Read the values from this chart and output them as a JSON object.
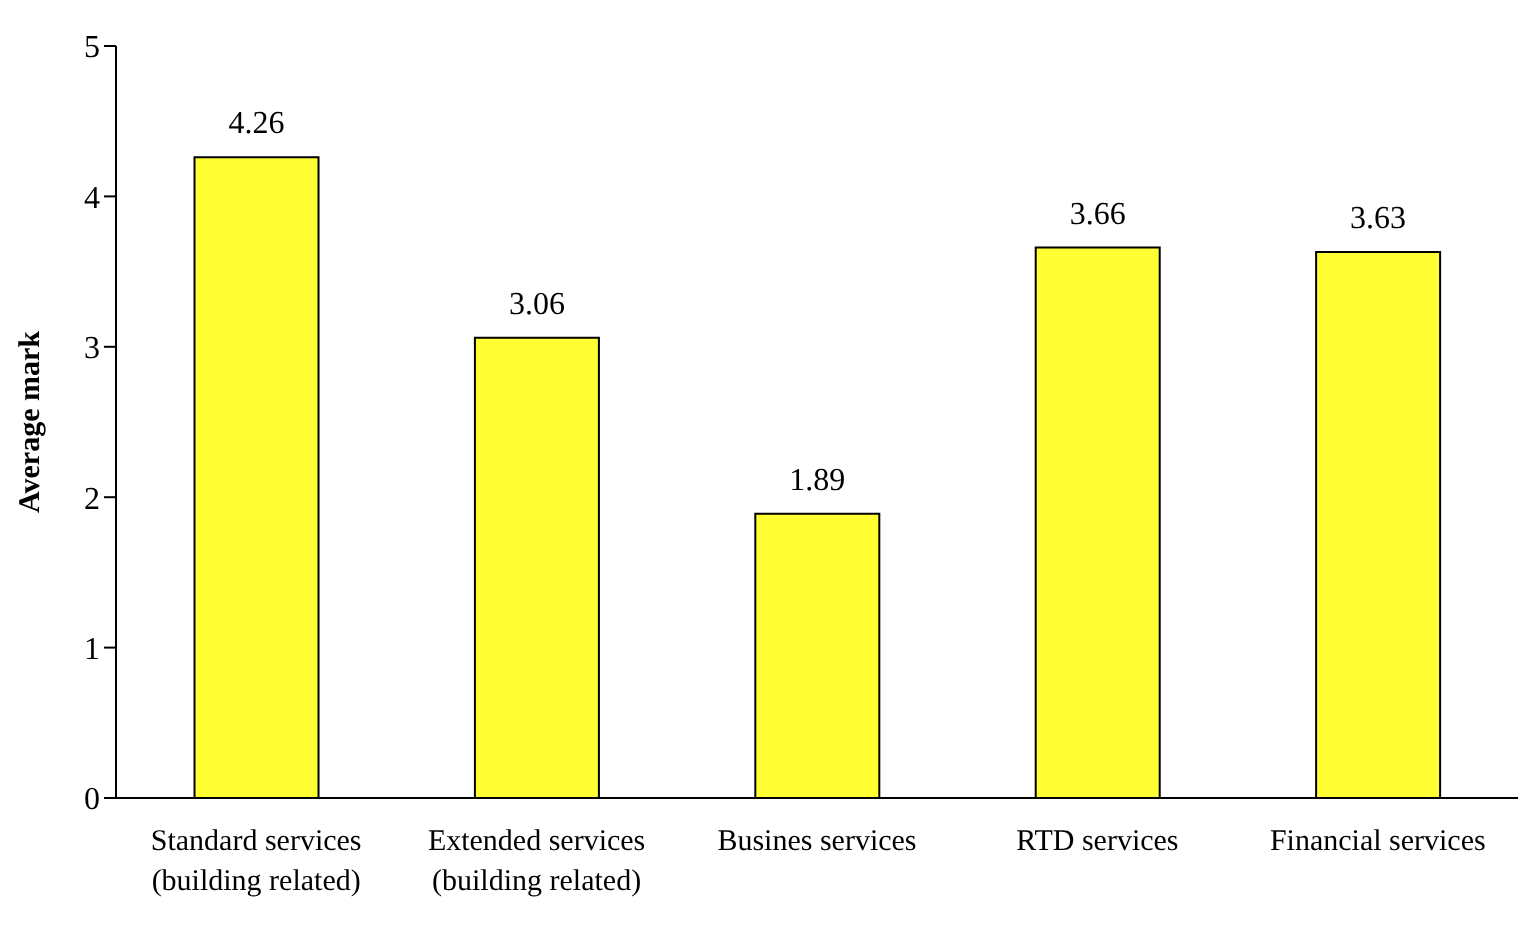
{
  "chart_data": {
    "type": "bar",
    "ylabel": "Average mark",
    "categories": [
      "Standard services\n(building related)",
      "Extended services\n(building related)",
      "Busines services",
      "RTD services",
      "Financial services"
    ],
    "values": [
      4.26,
      3.06,
      1.89,
      3.66,
      3.63
    ],
    "color": "#ffff33",
    "ylim": [
      0,
      5
    ],
    "yticks": [
      0,
      1,
      2,
      3,
      4,
      5
    ],
    "grid": false,
    "legend": false,
    "data_labels": true
  }
}
